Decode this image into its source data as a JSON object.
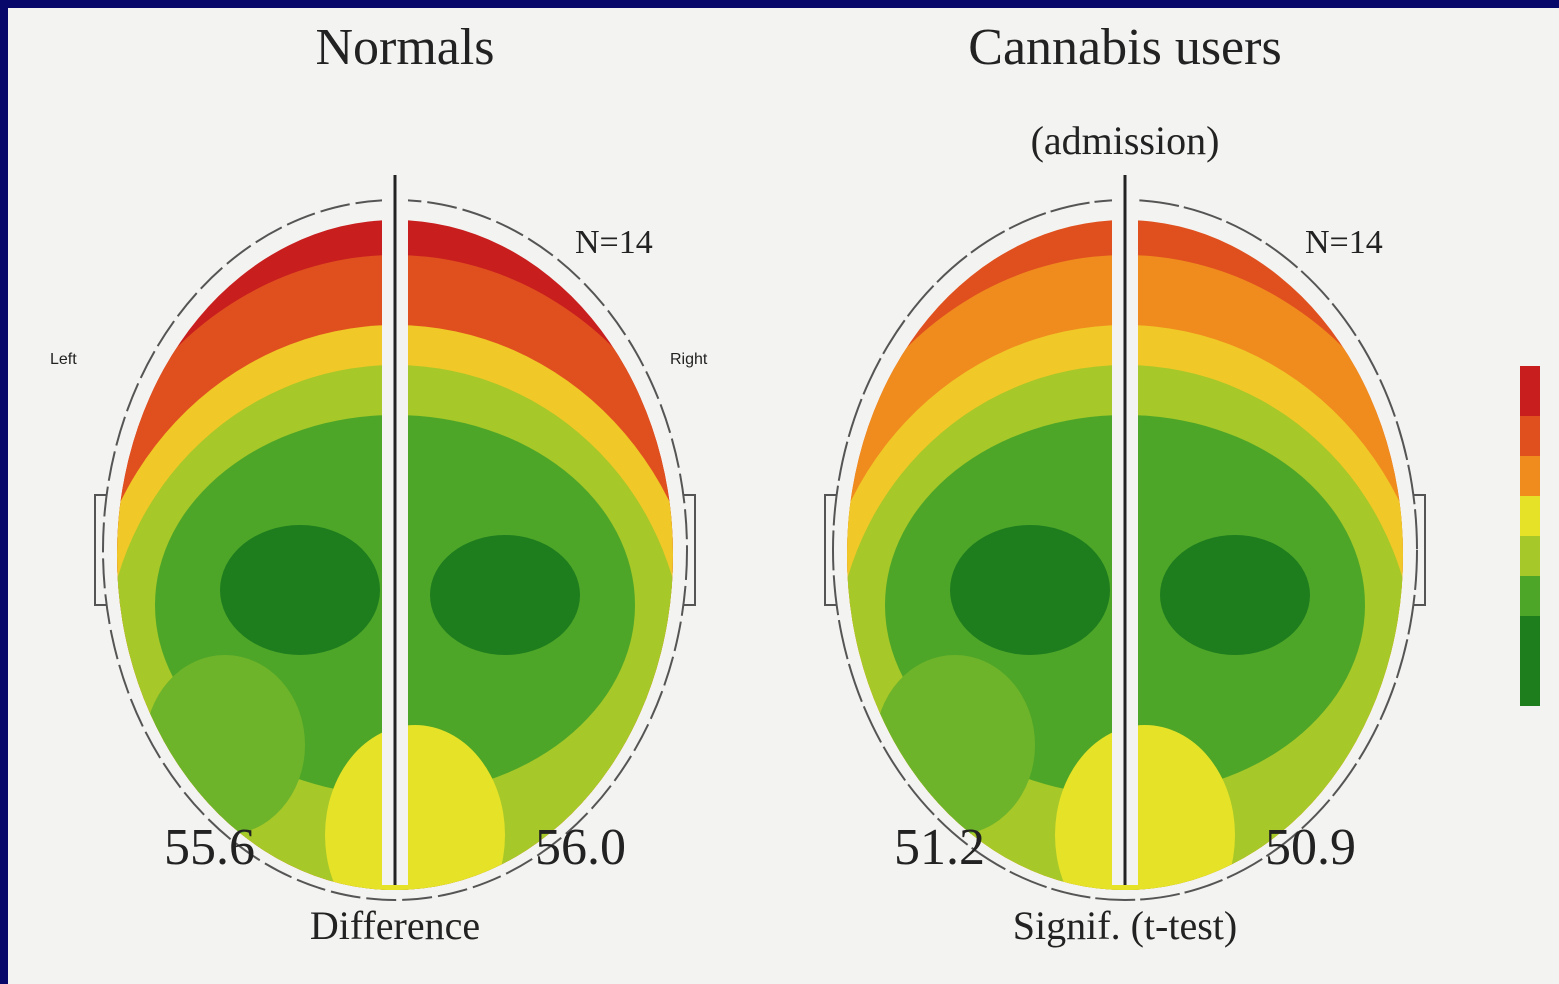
{
  "panels": [
    {
      "title": "Normals",
      "n_label": "N=14",
      "left_label": "Left",
      "right_label": "Right",
      "left_value": "55.6",
      "right_value": "56.0",
      "caption": "Difference"
    },
    {
      "title": "Cannabis users",
      "subtitle": "(admission)",
      "n_label": "N=14",
      "left_value": "51.2",
      "right_value": "50.9",
      "caption": "Signif. (t-test)"
    }
  ]
}
